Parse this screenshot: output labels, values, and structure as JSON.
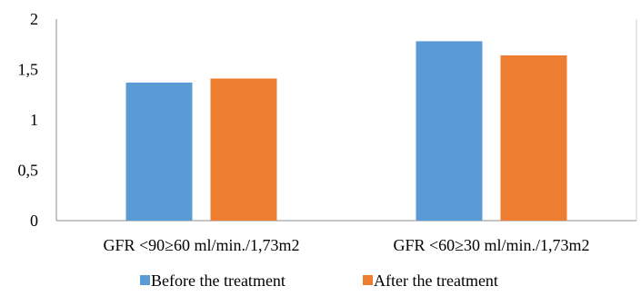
{
  "chart_data": {
    "type": "bar",
    "title": "",
    "xlabel": "",
    "ylabel": "",
    "categories": [
      "GFR <90≥60 ml/min./1,73m2",
      "GFR <60≥30 ml/min./1,73m2"
    ],
    "series": [
      {
        "name": "Before the treatment",
        "values": [
          1.37,
          1.78
        ],
        "color": "#5b9bd5"
      },
      {
        "name": "After the treatment",
        "values": [
          1.41,
          1.64
        ],
        "color": "#ed7d31"
      }
    ],
    "ylim": [
      0,
      2
    ],
    "yticks": [
      0,
      0.5,
      1,
      1.5,
      2
    ],
    "ytick_labels": [
      "0",
      "0,5",
      "1",
      "1,5",
      "2"
    ],
    "grid": false,
    "legend": "bottom"
  }
}
